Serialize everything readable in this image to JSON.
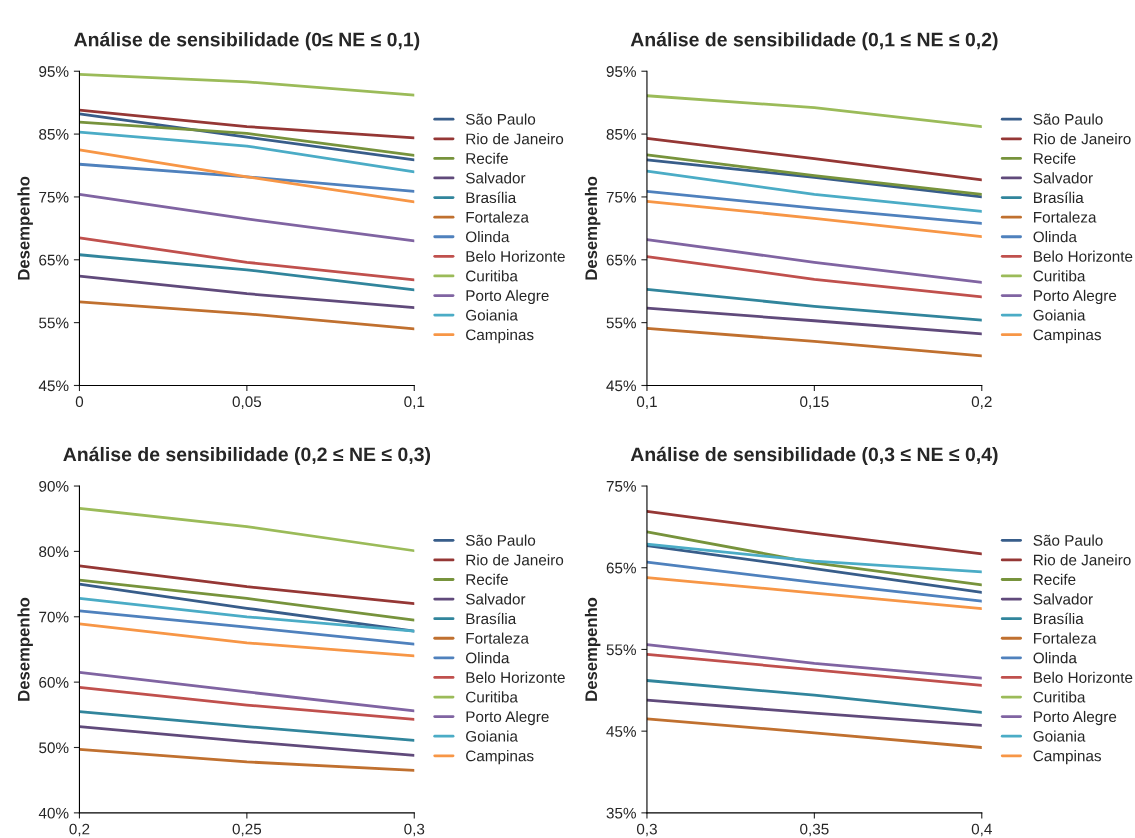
{
  "chart_data": [
    {
      "type": "line",
      "title": "Análise de sensibilidade (0≤ NE ≤ 0,1)",
      "ylabel": "Desempenho",
      "x": [
        0,
        0.05,
        0.1
      ],
      "xlim": [
        0,
        0.1
      ],
      "xticks": [
        0,
        {
          "value": 0.05,
          "label": "0,05"
        },
        {
          "value": 0.1,
          "label": "0,1"
        }
      ],
      "ylim": [
        45,
        95
      ],
      "yticks": [
        {
          "value": 45,
          "label": "45%"
        },
        {
          "value": 55,
          "label": "55%"
        },
        {
          "value": 65,
          "label": "65%"
        },
        {
          "value": 75,
          "label": "75%"
        },
        {
          "value": 85,
          "label": "85%"
        },
        {
          "value": 95,
          "label": "95%"
        }
      ],
      "grid": false,
      "legend": "right",
      "marker": "none",
      "line_style": "solid",
      "series": [
        {
          "name": "São Paulo",
          "color": "#385d8a",
          "values": [
            88.2,
            84.5,
            80.9
          ]
        },
        {
          "name": "Rio de Janeiro",
          "color": "#953735",
          "values": [
            88.8,
            86.2,
            84.4
          ]
        },
        {
          "name": "Recife",
          "color": "#77933c",
          "values": [
            86.9,
            85.1,
            81.6
          ]
        },
        {
          "name": "Salvador",
          "color": "#604a7b",
          "values": [
            62.4,
            59.6,
            57.4
          ]
        },
        {
          "name": "Brasília",
          "color": "#31859c",
          "values": [
            65.8,
            63.4,
            60.2
          ]
        },
        {
          "name": "Fortaleza",
          "color": "#c0702f",
          "values": [
            58.3,
            56.4,
            54.0
          ]
        },
        {
          "name": "Olinda",
          "color": "#4f81bd",
          "values": [
            80.2,
            78.2,
            75.9
          ]
        },
        {
          "name": "Belo Horizonte",
          "color": "#c0504d",
          "values": [
            68.5,
            64.6,
            61.8
          ]
        },
        {
          "name": "Curitiba",
          "color": "#9bbb59",
          "values": [
            94.5,
            93.3,
            91.2
          ]
        },
        {
          "name": "Porto Alegre",
          "color": "#8064a2",
          "values": [
            75.4,
            71.5,
            68.0
          ]
        },
        {
          "name": "Goiania",
          "color": "#4bacc6",
          "values": [
            85.3,
            83.1,
            79.0
          ]
        },
        {
          "name": "Campinas",
          "color": "#f79646",
          "values": [
            82.5,
            78.2,
            74.2
          ]
        }
      ]
    },
    {
      "type": "line",
      "title": "Análise de sensibilidade (0,1 ≤ NE ≤ 0,2)",
      "ylabel": "Desempenho",
      "x": [
        0.1,
        0.15,
        0.2
      ],
      "xlim": [
        0.1,
        0.2
      ],
      "xticks": [
        {
          "value": 0.1,
          "label": "0,1"
        },
        {
          "value": 0.15,
          "label": "0,15"
        },
        {
          "value": 0.2,
          "label": "0,2"
        }
      ],
      "ylim": [
        45,
        95
      ],
      "yticks": [
        {
          "value": 45,
          "label": "45%"
        },
        {
          "value": 55,
          "label": "55%"
        },
        {
          "value": 65,
          "label": "65%"
        },
        {
          "value": 75,
          "label": "75%"
        },
        {
          "value": 85,
          "label": "85%"
        },
        {
          "value": 95,
          "label": "95%"
        }
      ],
      "grid": false,
      "legend": "right",
      "marker": "none",
      "line_style": "solid",
      "series": [
        {
          "name": "São Paulo",
          "color": "#385d8a",
          "values": [
            80.9,
            78.1,
            75.0
          ]
        },
        {
          "name": "Rio de Janeiro",
          "color": "#953735",
          "values": [
            84.3,
            81.1,
            77.7
          ]
        },
        {
          "name": "Recife",
          "color": "#77933c",
          "values": [
            81.7,
            78.4,
            75.4
          ]
        },
        {
          "name": "Salvador",
          "color": "#604a7b",
          "values": [
            57.3,
            55.3,
            53.2
          ]
        },
        {
          "name": "Brasília",
          "color": "#31859c",
          "values": [
            60.3,
            57.6,
            55.4
          ]
        },
        {
          "name": "Fortaleza",
          "color": "#c0702f",
          "values": [
            54.1,
            52.0,
            49.7
          ]
        },
        {
          "name": "Olinda",
          "color": "#4f81bd",
          "values": [
            75.9,
            73.2,
            70.8
          ]
        },
        {
          "name": "Belo Horizonte",
          "color": "#c0504d",
          "values": [
            65.5,
            61.9,
            59.1
          ]
        },
        {
          "name": "Curitiba",
          "color": "#9bbb59",
          "values": [
            91.1,
            89.2,
            86.2
          ]
        },
        {
          "name": "Porto Alegre",
          "color": "#8064a2",
          "values": [
            68.2,
            64.6,
            61.4
          ]
        },
        {
          "name": "Goiania",
          "color": "#4bacc6",
          "values": [
            79.1,
            75.4,
            72.7
          ]
        },
        {
          "name": "Campinas",
          "color": "#f79646",
          "values": [
            74.3,
            71.6,
            68.7
          ]
        }
      ]
    },
    {
      "type": "line",
      "title": "Análise de sensibilidade (0,2 ≤ NE ≤ 0,3)",
      "ylabel": "Desempenho",
      "x": [
        0.2,
        0.25,
        0.3
      ],
      "xlim": [
        0.2,
        0.3
      ],
      "xticks": [
        {
          "value": 0.2,
          "label": "0,2"
        },
        {
          "value": 0.25,
          "label": "0,25"
        },
        {
          "value": 0.3,
          "label": "0,3"
        }
      ],
      "ylim": [
        40,
        90
      ],
      "yticks": [
        {
          "value": 40,
          "label": "40%"
        },
        {
          "value": 50,
          "label": "50%"
        },
        {
          "value": 60,
          "label": "60%"
        },
        {
          "value": 70,
          "label": "70%"
        },
        {
          "value": 80,
          "label": "80%"
        },
        {
          "value": 90,
          "label": "90%"
        }
      ],
      "grid": false,
      "legend": "right",
      "marker": "none",
      "line_style": "solid",
      "series": [
        {
          "name": "São Paulo",
          "color": "#385d8a",
          "values": [
            75.0,
            71.3,
            67.8
          ]
        },
        {
          "name": "Rio de Janeiro",
          "color": "#953735",
          "values": [
            77.8,
            74.6,
            72.0
          ]
        },
        {
          "name": "Recife",
          "color": "#77933c",
          "values": [
            75.6,
            72.8,
            69.5
          ]
        },
        {
          "name": "Salvador",
          "color": "#604a7b",
          "values": [
            53.2,
            50.9,
            48.8
          ]
        },
        {
          "name": "Brasília",
          "color": "#31859c",
          "values": [
            55.5,
            53.2,
            51.1
          ]
        },
        {
          "name": "Fortaleza",
          "color": "#c0702f",
          "values": [
            49.7,
            47.8,
            46.5
          ]
        },
        {
          "name": "Olinda",
          "color": "#4f81bd",
          "values": [
            70.9,
            68.4,
            65.8
          ]
        },
        {
          "name": "Belo Horizonte",
          "color": "#c0504d",
          "values": [
            59.2,
            56.5,
            54.3
          ]
        },
        {
          "name": "Curitiba",
          "color": "#9bbb59",
          "values": [
            86.6,
            83.8,
            80.1
          ]
        },
        {
          "name": "Porto Alegre",
          "color": "#8064a2",
          "values": [
            61.5,
            58.5,
            55.6
          ]
        },
        {
          "name": "Goiania",
          "color": "#4bacc6",
          "values": [
            72.8,
            70.0,
            67.8
          ]
        },
        {
          "name": "Campinas",
          "color": "#f79646",
          "values": [
            68.9,
            66.0,
            64.0
          ]
        }
      ]
    },
    {
      "type": "line",
      "title": "Análise de sensibilidade (0,3 ≤ NE ≤ 0,4)",
      "ylabel": "Desempenho",
      "x": [
        0.3,
        0.35,
        0.4
      ],
      "xlim": [
        0.3,
        0.4
      ],
      "xticks": [
        {
          "value": 0.3,
          "label": "0,3"
        },
        {
          "value": 0.35,
          "label": "0,35"
        },
        {
          "value": 0.4,
          "label": "0,4"
        }
      ],
      "ylim": [
        35,
        75
      ],
      "yticks": [
        {
          "value": 35,
          "label": "35%"
        },
        {
          "value": 45,
          "label": "45%"
        },
        {
          "value": 55,
          "label": "55%"
        },
        {
          "value": 65,
          "label": "65%"
        },
        {
          "value": 75,
          "label": "75%"
        }
      ],
      "grid": false,
      "legend": "right",
      "marker": "none",
      "line_style": "solid",
      "series": [
        {
          "name": "São Paulo",
          "color": "#385d8a",
          "values": [
            67.7,
            64.9,
            62.0
          ]
        },
        {
          "name": "Rio de Janeiro",
          "color": "#953735",
          "values": [
            71.9,
            69.2,
            66.7
          ]
        },
        {
          "name": "Recife",
          "color": "#77933c",
          "values": [
            69.4,
            65.6,
            62.9
          ]
        },
        {
          "name": "Salvador",
          "color": "#604a7b",
          "values": [
            48.8,
            47.2,
            45.7
          ]
        },
        {
          "name": "Brasília",
          "color": "#31859c",
          "values": [
            51.2,
            49.4,
            47.3
          ]
        },
        {
          "name": "Fortaleza",
          "color": "#c0702f",
          "values": [
            46.5,
            44.8,
            43.0
          ]
        },
        {
          "name": "Olinda",
          "color": "#4f81bd",
          "values": [
            65.7,
            63.2,
            60.9
          ]
        },
        {
          "name": "Belo Horizonte",
          "color": "#c0504d",
          "values": [
            54.4,
            52.5,
            50.6
          ]
        },
        {
          "name": "Curitiba",
          "color": "#9bbb59",
          "values": [
            null,
            null,
            null
          ]
        },
        {
          "name": "Porto Alegre",
          "color": "#8064a2",
          "values": [
            55.6,
            53.3,
            51.5
          ]
        },
        {
          "name": "Goiania",
          "color": "#4bacc6",
          "values": [
            67.9,
            65.8,
            64.5
          ]
        },
        {
          "name": "Campinas",
          "color": "#f79646",
          "values": [
            63.8,
            61.9,
            60.0
          ]
        }
      ]
    }
  ]
}
